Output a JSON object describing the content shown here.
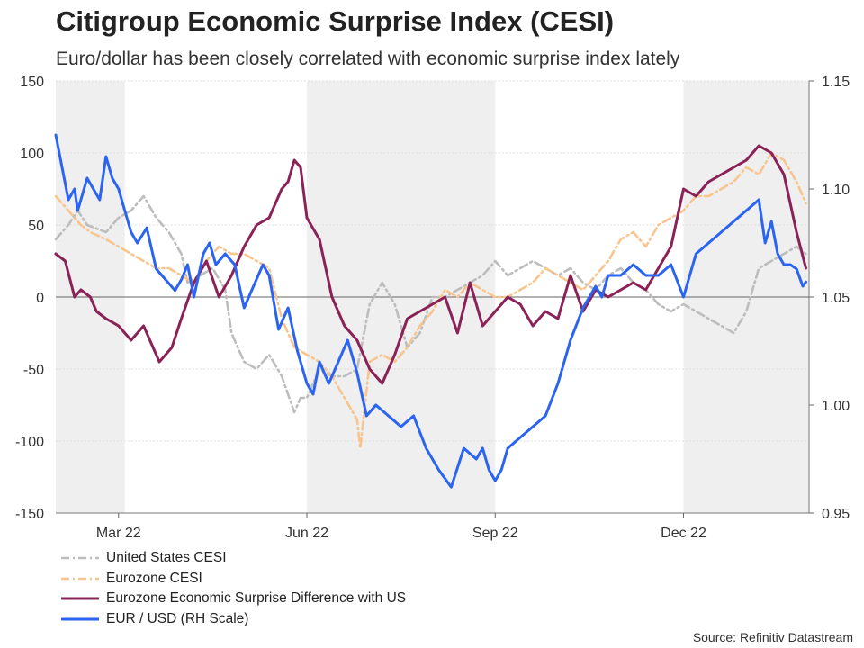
{
  "title": "Citigroup Economic Surprise Index (CESI)",
  "subtitle": "Euro/dollar has been closely correlated with economic surprise index lately",
  "source": "Source: Refinitiv Datastream",
  "colors": {
    "us_cesi": "#bdbdbd",
    "eurozone_cesi": "#f8c58f",
    "difference": "#8b2257",
    "eurusd": "#2b64f0",
    "shading": "#efefef",
    "grid": "#d7d7d7"
  },
  "legend": [
    {
      "label": "United States CESI",
      "series": "us_cesi"
    },
    {
      "label": "Eurozone CESI",
      "series": "eurozone_cesi"
    },
    {
      "label": "Eurozone Economic Surprise Difference with US",
      "series": "difference"
    },
    {
      "label": "EUR / USD (RH Scale)",
      "series": "eurusd"
    }
  ],
  "chart_data": {
    "type": "line",
    "title": "Citigroup Economic Surprise Index (CESI)",
    "subtitle": "Euro/dollar has been closely correlated with economic surprise index lately",
    "x_unit": "months since Feb 1, 2022",
    "xlim": [
      0,
      12
    ],
    "x_ticks": [
      {
        "label": "Mar 22",
        "x": 1.0
      },
      {
        "label": "Jun 22",
        "x": 4.0
      },
      {
        "label": "Sep 22",
        "x": 7.0
      },
      {
        "label": "Dec 22",
        "x": 10.0
      }
    ],
    "shaded_bands": [
      [
        0,
        1.1
      ],
      [
        4.0,
        7.0
      ],
      [
        10.0,
        12.0
      ]
    ],
    "y_left": {
      "lim": [
        -150,
        150
      ],
      "ticks": [
        "150",
        "100",
        "50",
        "0",
        "-50",
        "-100",
        "-150"
      ],
      "zero_line": true
    },
    "y_right": {
      "lim": [
        0.95,
        1.15
      ],
      "ticks": [
        "1.15",
        "1.10",
        "1.05",
        "1.00",
        "0.95"
      ]
    },
    "series": [
      {
        "name": "United States CESI",
        "key": "us_cesi",
        "axis": "left",
        "style": "dash-dot",
        "x": [
          0,
          0.2,
          0.35,
          0.5,
          0.8,
          1.0,
          1.2,
          1.4,
          1.6,
          1.8,
          2.0,
          2.1,
          2.3,
          2.5,
          2.7,
          2.8,
          3.0,
          3.2,
          3.4,
          3.6,
          3.8,
          3.9,
          4.0,
          4.2,
          4.4,
          4.6,
          4.8,
          5.0,
          5.2,
          5.4,
          5.6,
          5.8,
          6.0,
          6.2,
          6.4,
          6.6,
          6.8,
          7.0,
          7.2,
          7.4,
          7.6,
          7.8,
          8.0,
          8.2,
          8.4,
          8.6,
          8.8,
          9.0,
          9.2,
          9.4,
          9.6,
          9.8,
          10.0,
          10.2,
          10.4,
          10.6,
          10.8,
          11.0,
          11.2,
          11.4,
          11.6,
          11.8,
          11.95
        ],
        "values": [
          40,
          50,
          60,
          50,
          45,
          55,
          60,
          70,
          55,
          45,
          30,
          10,
          15,
          20,
          5,
          -25,
          -45,
          -50,
          -40,
          -55,
          -80,
          -70,
          -70,
          -50,
          -55,
          -55,
          -50,
          -5,
          10,
          -5,
          -35,
          -25,
          0,
          0,
          5,
          10,
          15,
          25,
          15,
          20,
          25,
          20,
          15,
          20,
          10,
          5,
          15,
          20,
          10,
          5,
          -5,
          -10,
          -5,
          -10,
          -15,
          -20,
          -25,
          -10,
          20,
          25,
          30,
          35,
          30
        ]
      },
      {
        "name": "Eurozone CESI",
        "key": "eurozone_cesi",
        "axis": "left",
        "style": "dash-dot",
        "x": [
          0,
          0.2,
          0.4,
          0.55,
          0.8,
          1.0,
          1.2,
          1.4,
          1.6,
          1.8,
          2.0,
          2.2,
          2.4,
          2.6,
          2.8,
          3.0,
          3.2,
          3.4,
          3.6,
          3.8,
          4.0,
          4.2,
          4.4,
          4.6,
          4.8,
          4.85,
          5.0,
          5.2,
          5.4,
          5.6,
          5.8,
          6.0,
          6.2,
          6.4,
          6.6,
          6.8,
          7.0,
          7.2,
          7.4,
          7.6,
          7.8,
          8.0,
          8.2,
          8.4,
          8.6,
          8.8,
          9.0,
          9.2,
          9.4,
          9.6,
          9.8,
          10.0,
          10.2,
          10.4,
          10.6,
          10.8,
          11.0,
          11.2,
          11.4,
          11.6,
          11.8,
          11.95
        ],
        "values": [
          70,
          60,
          50,
          45,
          40,
          35,
          30,
          25,
          20,
          20,
          15,
          10,
          25,
          35,
          30,
          30,
          25,
          20,
          -15,
          -35,
          -40,
          -45,
          -55,
          -70,
          -85,
          -105,
          -45,
          -40,
          -45,
          -35,
          -20,
          -10,
          5,
          0,
          10,
          5,
          0,
          0,
          5,
          10,
          20,
          15,
          10,
          5,
          15,
          25,
          40,
          45,
          35,
          50,
          55,
          60,
          70,
          70,
          75,
          80,
          90,
          85,
          100,
          95,
          80,
          65
        ]
      },
      {
        "name": "Eurozone Economic Surprise Difference with US",
        "key": "difference",
        "axis": "left",
        "style": "solid",
        "x": [
          0,
          0.15,
          0.3,
          0.4,
          0.55,
          0.65,
          0.8,
          1.0,
          1.2,
          1.4,
          1.55,
          1.65,
          1.75,
          1.85,
          2.0,
          2.2,
          2.4,
          2.6,
          2.8,
          3.0,
          3.2,
          3.4,
          3.5,
          3.6,
          3.7,
          3.8,
          3.9,
          4.0,
          4.2,
          4.4,
          4.6,
          4.8,
          5.0,
          5.2,
          5.4,
          5.6,
          5.8,
          6.0,
          6.2,
          6.4,
          6.6,
          6.8,
          7.0,
          7.2,
          7.4,
          7.6,
          7.8,
          8.0,
          8.2,
          8.4,
          8.6,
          8.8,
          9.0,
          9.2,
          9.4,
          9.6,
          9.8,
          10.0,
          10.2,
          10.4,
          10.6,
          10.8,
          11.0,
          11.2,
          11.4,
          11.6,
          11.8,
          11.95
        ],
        "values": [
          30,
          25,
          0,
          5,
          0,
          -10,
          -15,
          -20,
          -30,
          -20,
          -35,
          -45,
          -40,
          -35,
          -15,
          10,
          25,
          0,
          15,
          35,
          50,
          55,
          65,
          75,
          80,
          95,
          90,
          55,
          40,
          0,
          -20,
          -30,
          -50,
          -60,
          -40,
          -15,
          -10,
          -5,
          0,
          -25,
          10,
          -20,
          -10,
          0,
          -5,
          -20,
          -10,
          -15,
          15,
          -10,
          5,
          0,
          5,
          10,
          5,
          20,
          35,
          75,
          70,
          80,
          85,
          90,
          95,
          105,
          100,
          85,
          45,
          20
        ]
      },
      {
        "name": "EUR / USD (RH Scale)",
        "key": "eurusd",
        "axis": "right",
        "style": "solid",
        "x": [
          0,
          0.1,
          0.2,
          0.3,
          0.35,
          0.5,
          0.6,
          0.7,
          0.8,
          0.9,
          1.0,
          1.1,
          1.2,
          1.3,
          1.45,
          1.6,
          1.75,
          1.9,
          2.0,
          2.1,
          2.2,
          2.35,
          2.45,
          2.55,
          2.7,
          2.85,
          3.0,
          3.15,
          3.3,
          3.4,
          3.55,
          3.7,
          3.85,
          4.0,
          4.1,
          4.2,
          4.35,
          4.5,
          4.65,
          4.8,
          4.95,
          5.1,
          5.3,
          5.5,
          5.7,
          5.9,
          6.1,
          6.3,
          6.5,
          6.7,
          6.8,
          6.9,
          7.0,
          7.1,
          7.2,
          7.4,
          7.6,
          7.8,
          8.0,
          8.2,
          8.4,
          8.6,
          8.7,
          8.8,
          9.0,
          9.2,
          9.4,
          9.6,
          9.8,
          10.0,
          10.2,
          10.4,
          10.6,
          10.8,
          11.0,
          11.2,
          11.3,
          11.4,
          11.5,
          11.6,
          11.7,
          11.8,
          11.9,
          11.95
        ],
        "values": [
          1.125,
          1.11,
          1.095,
          1.1,
          1.09,
          1.105,
          1.1,
          1.095,
          1.115,
          1.105,
          1.1,
          1.09,
          1.08,
          1.075,
          1.082,
          1.063,
          1.058,
          1.053,
          1.058,
          1.065,
          1.05,
          1.07,
          1.075,
          1.065,
          1.07,
          1.065,
          1.045,
          1.055,
          1.065,
          1.06,
          1.035,
          1.045,
          1.025,
          1.01,
          1.005,
          1.02,
          1.01,
          1.02,
          1.03,
          1.015,
          0.995,
          1.0,
          0.995,
          0.99,
          0.995,
          0.98,
          0.97,
          0.962,
          0.98,
          0.975,
          0.98,
          0.97,
          0.965,
          0.97,
          0.98,
          0.985,
          0.99,
          0.995,
          1.01,
          1.03,
          1.045,
          1.055,
          1.05,
          1.06,
          1.06,
          1.065,
          1.06,
          1.06,
          1.065,
          1.05,
          1.07,
          1.075,
          1.08,
          1.085,
          1.09,
          1.095,
          1.075,
          1.085,
          1.07,
          1.065,
          1.065,
          1.063,
          1.055,
          1.057
        ]
      }
    ]
  }
}
